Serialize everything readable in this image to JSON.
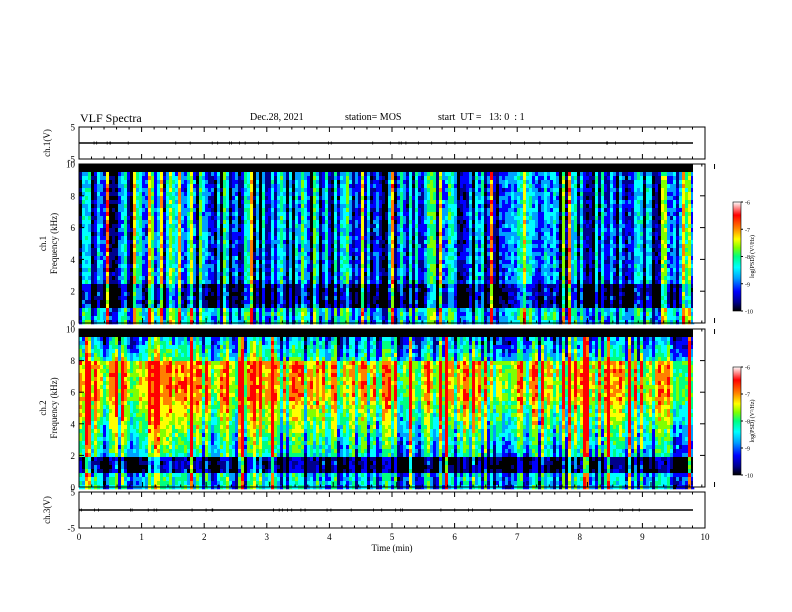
{
  "header": {
    "title": "VLF Spectra",
    "date": "Dec.28, 2021",
    "station": "station= MOS",
    "start": "start  UT =   13: 0  : 1"
  },
  "chart_data": [
    {
      "type": "line",
      "panel": "ch1-waveform",
      "ylabel": "ch.1(V)",
      "ylim": [
        -5,
        5
      ],
      "yticks": [
        "5",
        "-5"
      ],
      "xlim": [
        0,
        10
      ],
      "series": [
        {
          "values_constant": 0
        }
      ]
    },
    {
      "type": "heatmap",
      "panel": "ch1-spectrogram",
      "ylabel": "ch.1\nFrequency (kHz)",
      "ylim": [
        0,
        10
      ],
      "yticks": [
        "0",
        "2",
        "4",
        "6",
        "8",
        "10"
      ],
      "xlim": [
        0,
        9.85
      ],
      "colorbar": {
        "label": "log(PSD) (V²/Hz)",
        "range": [
          -10,
          -6
        ],
        "ticks": [
          "-6",
          "-7",
          "-8",
          "-9",
          "-10"
        ]
      },
      "profile": {
        "dominant_band_khz": [
          2.5,
          9.5
        ],
        "dark_band_khz": [
          1.0,
          2.5
        ],
        "top_dark_khz": [
          9.6,
          10
        ]
      }
    },
    {
      "type": "heatmap",
      "panel": "ch2-spectrogram",
      "ylabel": "ch.2\nFrequency (kHz)",
      "ylim": [
        0,
        10
      ],
      "yticks": [
        "0",
        "2",
        "4",
        "6",
        "8",
        "10"
      ],
      "xlim": [
        0,
        9.85
      ],
      "colorbar": {
        "label": "log(PSD) (V²/Hz)",
        "range": [
          -10,
          -6
        ],
        "ticks": [
          "-6",
          "-7",
          "-8",
          "-9",
          "-10"
        ]
      },
      "profile": {
        "peak_band_khz": [
          5.5,
          8.0
        ],
        "dark_band_khz": [
          1.0,
          2.0
        ],
        "top_dark_khz": [
          9.5,
          10
        ]
      }
    },
    {
      "type": "line",
      "panel": "ch3-waveform",
      "ylabel": "ch.3(V)",
      "ylim": [
        -5,
        5
      ],
      "yticks": [
        "5",
        "-5"
      ],
      "xlim": [
        0,
        10
      ],
      "xlabel": "Time  (min)",
      "xticks": [
        "0",
        "1",
        "2",
        "3",
        "4",
        "5",
        "6",
        "7",
        "8",
        "9",
        "10"
      ],
      "series": [
        {
          "values_constant": 0
        }
      ]
    }
  ],
  "colors": {
    "frame": "#000000",
    "background": "#ffffff",
    "colormap": [
      "#000000",
      "#00008c",
      "#0000ff",
      "#00a0ff",
      "#00ffff",
      "#00ff80",
      "#80ff00",
      "#ffff00",
      "#ff8000",
      "#ff0000",
      "#ffffff"
    ]
  }
}
